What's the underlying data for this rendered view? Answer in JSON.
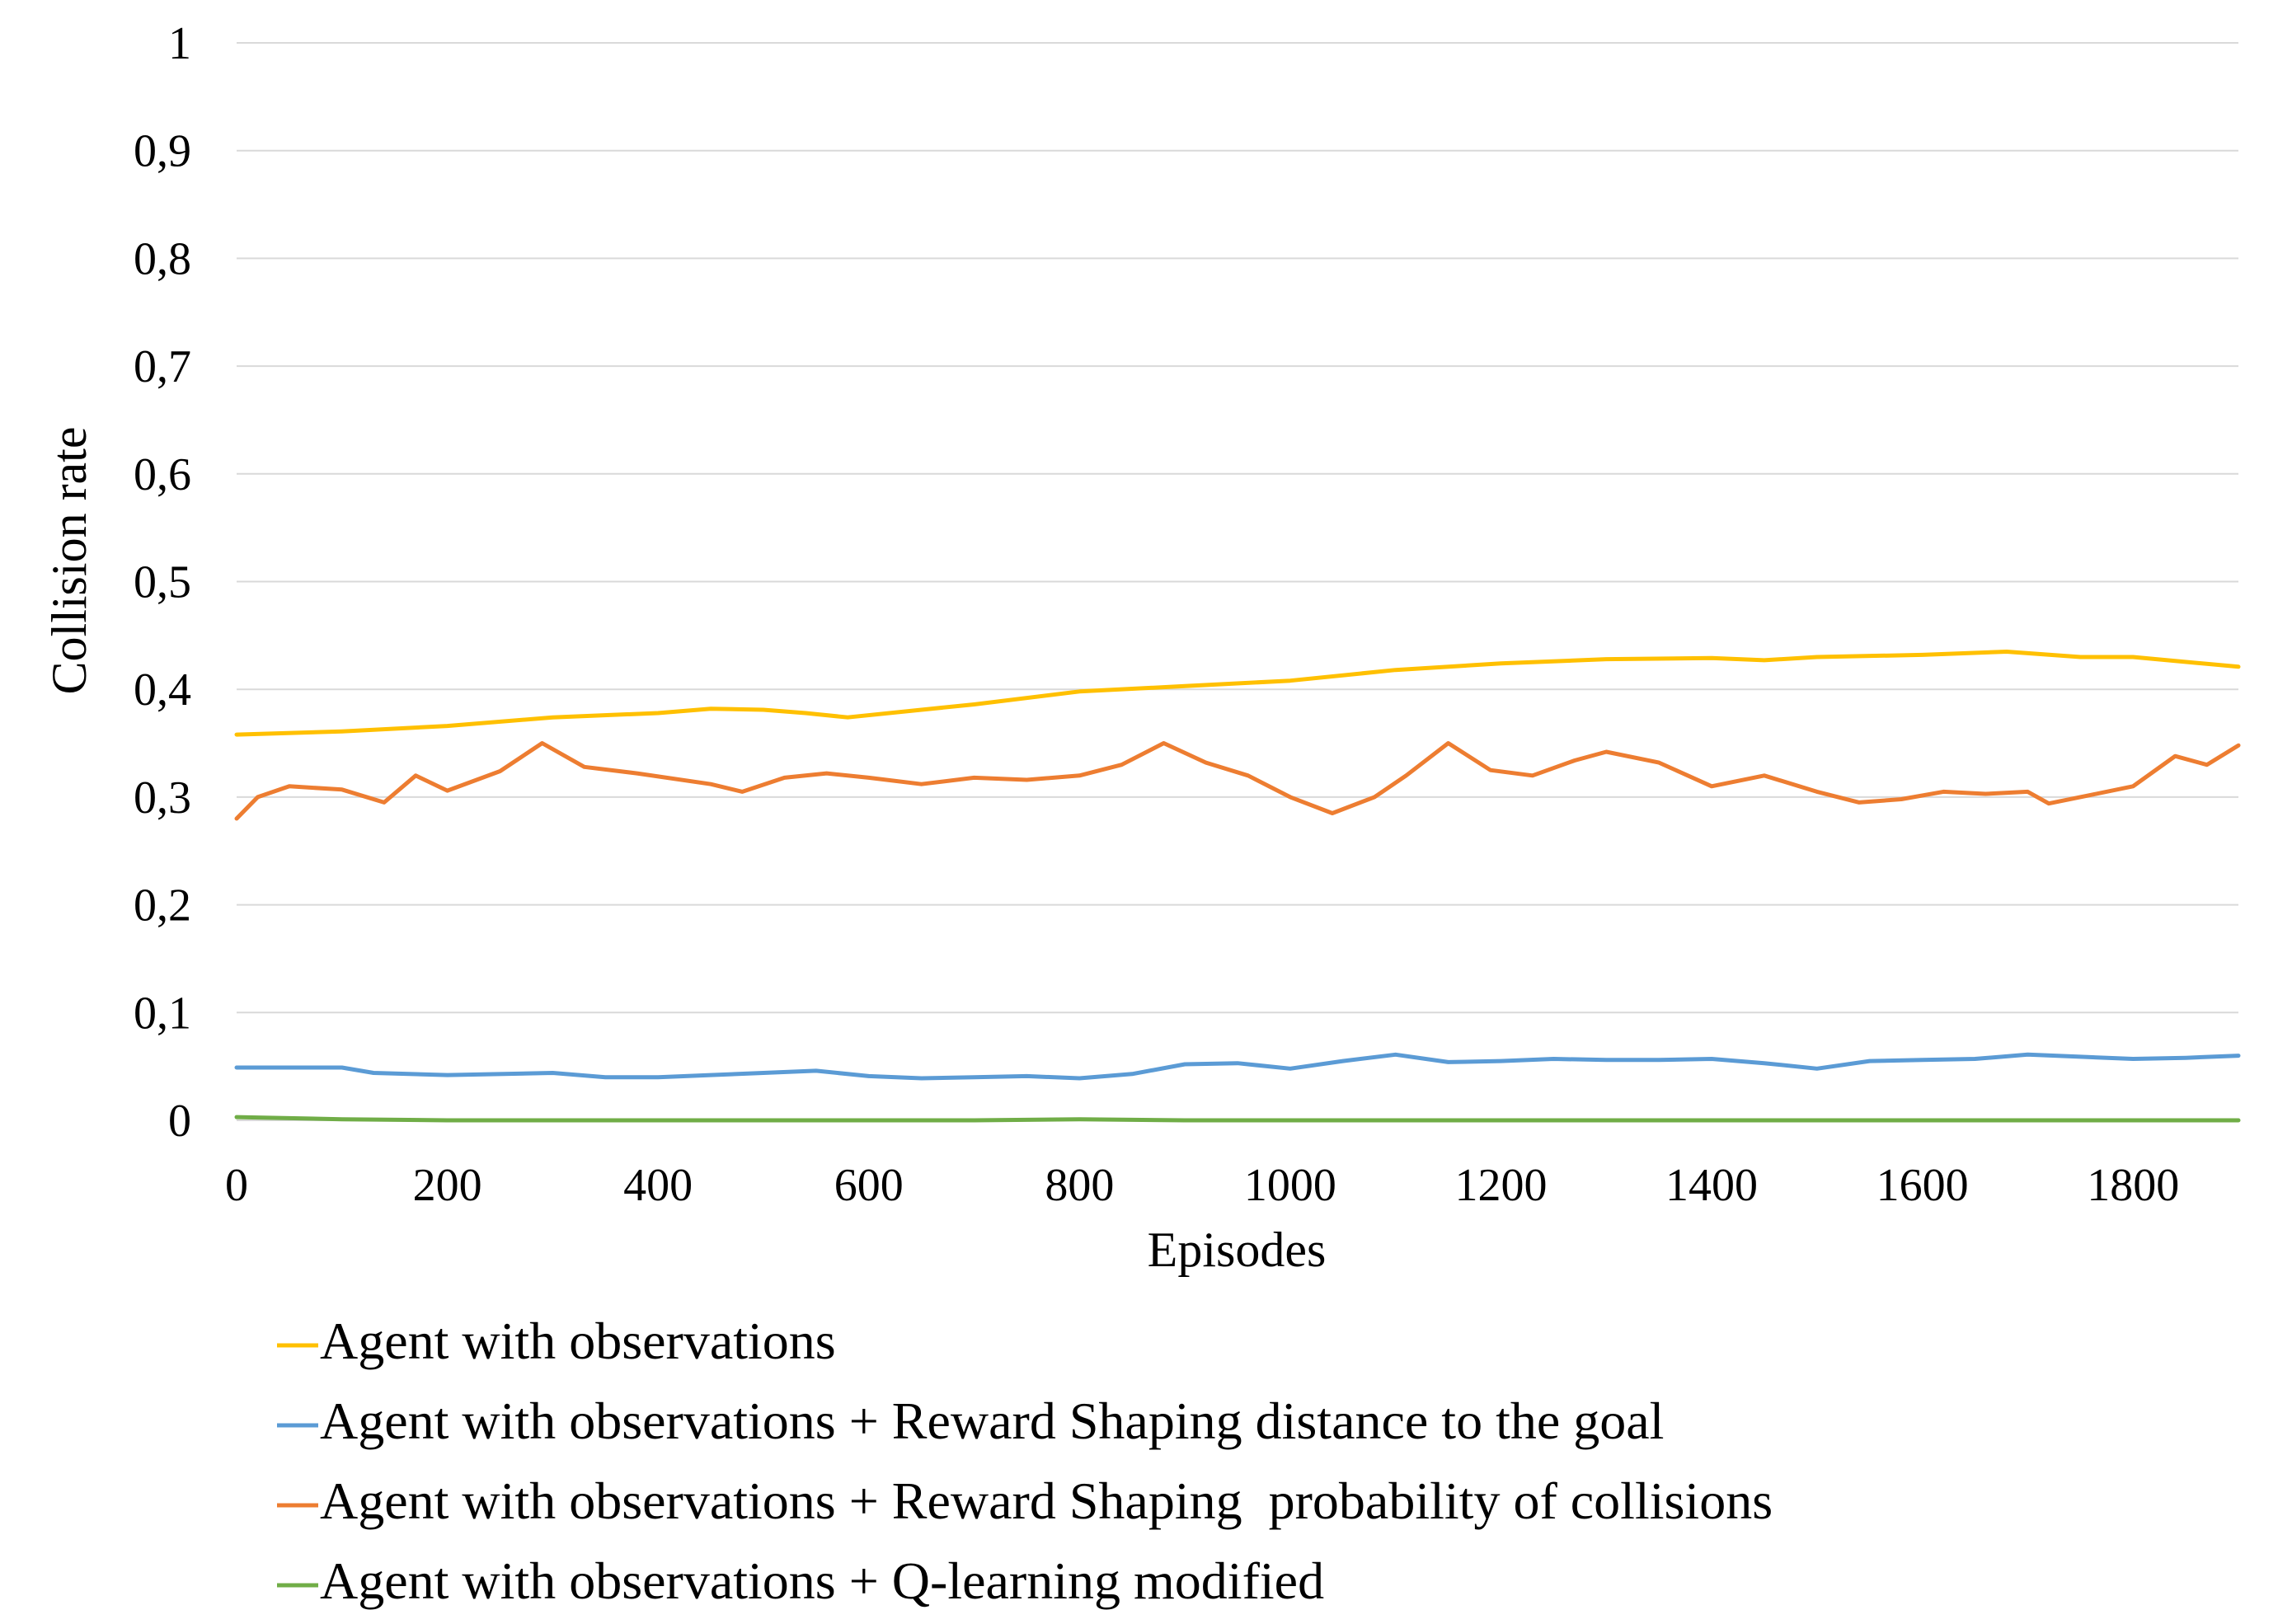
{
  "chart_data": {
    "type": "line",
    "title": "",
    "xlabel": "Episodes",
    "ylabel": "Collision rate",
    "xlim": [
      0,
      1900
    ],
    "ylim": [
      0,
      1
    ],
    "x_ticks": [
      0,
      200,
      400,
      600,
      800,
      1000,
      1200,
      1400,
      1600,
      1800
    ],
    "x_tick_labels": [
      "0",
      "200",
      "400",
      "600",
      "800",
      "1000",
      "1200",
      "1400",
      "1600",
      "1800"
    ],
    "y_ticks": [
      0,
      0.1,
      0.2,
      0.3,
      0.4,
      0.5,
      0.6,
      0.7,
      0.8,
      0.9,
      1
    ],
    "y_tick_labels": [
      "0",
      "0,1",
      "0,2",
      "0,3",
      "0,4",
      "0,5",
      "0,6",
      "0,7",
      "0,8",
      "0,9",
      "1"
    ],
    "grid": "horizontal",
    "legend_position": "bottom",
    "series": [
      {
        "name": "Agent with observations",
        "color": "#FFC000",
        "x": [
          0,
          100,
          200,
          300,
          400,
          450,
          500,
          540,
          580,
          650,
          700,
          800,
          900,
          1000,
          1100,
          1200,
          1300,
          1400,
          1450,
          1500,
          1600,
          1680,
          1750,
          1800,
          1900
        ],
        "y": [
          0.358,
          0.361,
          0.366,
          0.374,
          0.378,
          0.382,
          0.381,
          0.378,
          0.374,
          0.381,
          0.386,
          0.398,
          0.403,
          0.408,
          0.418,
          0.424,
          0.428,
          0.429,
          0.427,
          0.43,
          0.432,
          0.435,
          0.43,
          0.43,
          0.421
        ]
      },
      {
        "name": "Agent with observations + Reward Shaping distance to the goal",
        "color": "#5B9BD5",
        "x": [
          0,
          50,
          100,
          130,
          200,
          300,
          350,
          400,
          450,
          500,
          550,
          600,
          650,
          700,
          750,
          800,
          850,
          900,
          950,
          1000,
          1050,
          1100,
          1150,
          1200,
          1250,
          1300,
          1350,
          1400,
          1450,
          1500,
          1550,
          1600,
          1650,
          1700,
          1750,
          1800,
          1850,
          1900
        ],
        "y": [
          0.049,
          0.049,
          0.049,
          0.044,
          0.042,
          0.044,
          0.04,
          0.04,
          0.042,
          0.044,
          0.046,
          0.041,
          0.039,
          0.04,
          0.041,
          0.039,
          0.043,
          0.052,
          0.053,
          0.048,
          0.055,
          0.061,
          0.054,
          0.055,
          0.057,
          0.056,
          0.056,
          0.057,
          0.053,
          0.048,
          0.055,
          0.056,
          0.057,
          0.061,
          0.059,
          0.057,
          0.058,
          0.06
        ]
      },
      {
        "name": "Agent with observations + Reward Shaping  probability of collisions",
        "color": "#ED7D31",
        "x": [
          0,
          20,
          50,
          100,
          140,
          170,
          200,
          250,
          290,
          330,
          380,
          450,
          480,
          520,
          560,
          600,
          650,
          700,
          750,
          800,
          840,
          880,
          920,
          960,
          1000,
          1040,
          1080,
          1110,
          1150,
          1190,
          1230,
          1270,
          1300,
          1350,
          1400,
          1450,
          1500,
          1540,
          1580,
          1620,
          1660,
          1700,
          1720,
          1760,
          1800,
          1840,
          1870,
          1900
        ],
        "y": [
          0.28,
          0.3,
          0.31,
          0.307,
          0.295,
          0.32,
          0.306,
          0.324,
          0.35,
          0.328,
          0.322,
          0.312,
          0.305,
          0.318,
          0.322,
          0.318,
          0.312,
          0.318,
          0.316,
          0.32,
          0.33,
          0.35,
          0.332,
          0.32,
          0.3,
          0.285,
          0.3,
          0.32,
          0.35,
          0.325,
          0.32,
          0.334,
          0.342,
          0.332,
          0.31,
          0.32,
          0.305,
          0.295,
          0.298,
          0.305,
          0.303,
          0.305,
          0.294,
          0.302,
          0.31,
          0.338,
          0.33,
          0.348
        ]
      },
      {
        "name": "Agent with observations + Q-learning modified",
        "color": "#70AD47",
        "x": [
          0,
          100,
          200,
          300,
          400,
          500,
          600,
          700,
          800,
          900,
          1000,
          1100,
          1200,
          1300,
          1400,
          1500,
          1600,
          1700,
          1800,
          1900
        ],
        "y": [
          0.003,
          0.001,
          0.0,
          0.0,
          0.0,
          0.0,
          0.0,
          0.0,
          0.001,
          0.0,
          0.0,
          0.0,
          0.0,
          0.0,
          0.0,
          0.0,
          0.0,
          0.0,
          0.0,
          0.0
        ]
      }
    ]
  }
}
